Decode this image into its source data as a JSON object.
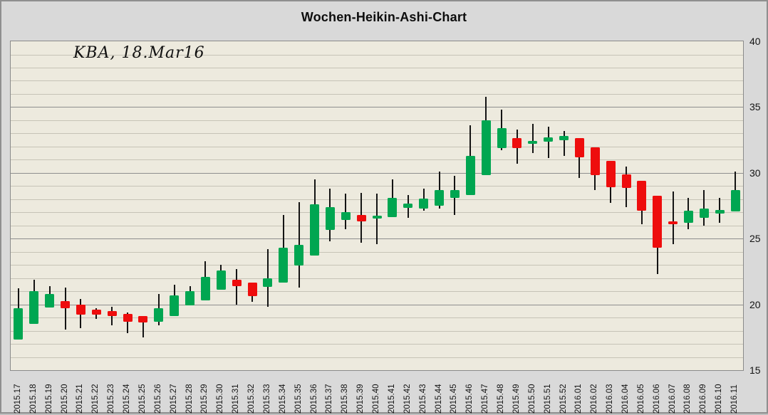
{
  "title": "Wochen-Heikin-Ashi-Chart",
  "annotation": "KBA, 18.Mar16",
  "colors": {
    "up_candle": "#00a651",
    "down_candle": "#ee0d0d",
    "wick": "#141414",
    "plot_background": "#edeade",
    "page_background": "#d9d9d9",
    "grid_minor": "#c6c3b6",
    "grid_major": "#8e8e8e",
    "plot_border": "#8a8a8a",
    "title_text": "#0d0d0d"
  },
  "chart_data": {
    "type": "candlestick",
    "subtype": "heikin-ashi-weekly",
    "title": "Wochen-Heikin-Ashi-Chart",
    "annotation": "KBA, 18.Mar16",
    "ylim": [
      15,
      40
    ],
    "y_major_step": 5,
    "y_minor_step": 1,
    "y_tick_labels": [
      15,
      20,
      25,
      30,
      35,
      40
    ],
    "grid": "horizontal-only",
    "legend": "none",
    "y_axis_side": "right",
    "x_label_rotation": "vertical",
    "candles": [
      {
        "label": "2015.17",
        "open": 17.3,
        "high": 21.2,
        "low": 17.3,
        "close": 19.7
      },
      {
        "label": "2015.18",
        "open": 18.5,
        "high": 21.9,
        "low": 18.5,
        "close": 21.0
      },
      {
        "label": "2015.19",
        "open": 19.75,
        "high": 21.4,
        "low": 19.75,
        "close": 20.8
      },
      {
        "label": "2015.20",
        "open": 20.25,
        "high": 21.3,
        "low": 18.1,
        "close": 19.7
      },
      {
        "label": "2015.21",
        "open": 20.0,
        "high": 20.4,
        "low": 18.2,
        "close": 19.2
      },
      {
        "label": "2015.22",
        "open": 19.6,
        "high": 19.7,
        "low": 18.9,
        "close": 19.2
      },
      {
        "label": "2015.23",
        "open": 19.5,
        "high": 19.8,
        "low": 18.4,
        "close": 19.1
      },
      {
        "label": "2015.24",
        "open": 19.3,
        "high": 19.4,
        "low": 17.8,
        "close": 18.7
      },
      {
        "label": "2015.25",
        "open": 19.1,
        "high": 19.1,
        "low": 17.5,
        "close": 18.6
      },
      {
        "label": "2015.26",
        "open": 18.7,
        "high": 20.8,
        "low": 18.4,
        "close": 19.7
      },
      {
        "label": "2015.27",
        "open": 19.1,
        "high": 21.5,
        "low": 19.1,
        "close": 20.7
      },
      {
        "label": "2015.28",
        "open": 19.9,
        "high": 21.4,
        "low": 19.9,
        "close": 21.0
      },
      {
        "label": "2015.29",
        "open": 20.3,
        "high": 23.3,
        "low": 20.3,
        "close": 22.1
      },
      {
        "label": "2015.30",
        "open": 21.1,
        "high": 23.0,
        "low": 21.1,
        "close": 22.6
      },
      {
        "label": "2015.31",
        "open": 21.9,
        "high": 22.7,
        "low": 20.0,
        "close": 21.4
      },
      {
        "label": "2015.32",
        "open": 21.65,
        "high": 21.65,
        "low": 20.2,
        "close": 20.6
      },
      {
        "label": "2015.33",
        "open": 21.3,
        "high": 24.2,
        "low": 19.8,
        "close": 22.0
      },
      {
        "label": "2015.34",
        "open": 21.65,
        "high": 26.8,
        "low": 21.65,
        "close": 24.3
      },
      {
        "label": "2015.35",
        "open": 22.95,
        "high": 27.8,
        "low": 21.3,
        "close": 24.5
      },
      {
        "label": "2015.36",
        "open": 23.7,
        "high": 29.5,
        "low": 23.7,
        "close": 27.6
      },
      {
        "label": "2015.37",
        "open": 25.65,
        "high": 28.8,
        "low": 24.8,
        "close": 27.4
      },
      {
        "label": "2015.38",
        "open": 26.4,
        "high": 28.4,
        "low": 25.7,
        "close": 27.0
      },
      {
        "label": "2015.39",
        "open": 26.8,
        "high": 28.5,
        "low": 24.7,
        "close": 26.3
      },
      {
        "label": "2015.40",
        "open": 26.55,
        "high": 28.4,
        "low": 24.6,
        "close": 26.75
      },
      {
        "label": "2015.41",
        "open": 26.65,
        "high": 29.5,
        "low": 26.65,
        "close": 28.1
      },
      {
        "label": "2015.42",
        "open": 27.35,
        "high": 28.3,
        "low": 26.6,
        "close": 27.65
      },
      {
        "label": "2015.43",
        "open": 27.3,
        "high": 28.8,
        "low": 27.1,
        "close": 28.05
      },
      {
        "label": "2015.44",
        "open": 27.5,
        "high": 30.1,
        "low": 27.3,
        "close": 28.7
      },
      {
        "label": "2015.45",
        "open": 28.1,
        "high": 29.8,
        "low": 26.8,
        "close": 28.7
      },
      {
        "label": "2015.46",
        "open": 28.3,
        "high": 33.6,
        "low": 28.3,
        "close": 31.3
      },
      {
        "label": "2015.47",
        "open": 29.8,
        "high": 35.8,
        "low": 29.8,
        "close": 34.0
      },
      {
        "label": "2015.48",
        "open": 31.9,
        "high": 34.8,
        "low": 31.7,
        "close": 33.4
      },
      {
        "label": "2015.49",
        "open": 32.65,
        "high": 33.3,
        "low": 30.7,
        "close": 31.9
      },
      {
        "label": "2015.50",
        "open": 32.25,
        "high": 33.7,
        "low": 31.5,
        "close": 32.45
      },
      {
        "label": "2015.51",
        "open": 32.35,
        "high": 33.5,
        "low": 31.1,
        "close": 32.7
      },
      {
        "label": "2015.52",
        "open": 32.5,
        "high": 33.2,
        "low": 31.3,
        "close": 32.8
      },
      {
        "label": "2016.01",
        "open": 32.65,
        "high": 32.65,
        "low": 29.6,
        "close": 31.2
      },
      {
        "label": "2016.02",
        "open": 31.95,
        "high": 31.95,
        "low": 28.7,
        "close": 29.85
      },
      {
        "label": "2016.03",
        "open": 30.9,
        "high": 30.9,
        "low": 27.7,
        "close": 28.9
      },
      {
        "label": "2016.04",
        "open": 29.9,
        "high": 30.5,
        "low": 27.4,
        "close": 28.85
      },
      {
        "label": "2016.05",
        "open": 29.4,
        "high": 29.4,
        "low": 26.1,
        "close": 27.1
      },
      {
        "label": "2016.06",
        "open": 28.25,
        "high": 28.25,
        "low": 22.3,
        "close": 24.3
      },
      {
        "label": "2016.07",
        "open": 26.3,
        "high": 28.6,
        "low": 24.6,
        "close": 26.1
      },
      {
        "label": "2016.08",
        "open": 26.2,
        "high": 28.1,
        "low": 25.7,
        "close": 27.1
      },
      {
        "label": "2016.09",
        "open": 26.6,
        "high": 28.7,
        "low": 26.0,
        "close": 27.3
      },
      {
        "label": "2016.10",
        "open": 26.9,
        "high": 28.1,
        "low": 26.2,
        "close": 27.2
      },
      {
        "label": "2016.11",
        "open": 27.05,
        "high": 30.1,
        "low": 27.05,
        "close": 28.7
      }
    ]
  }
}
